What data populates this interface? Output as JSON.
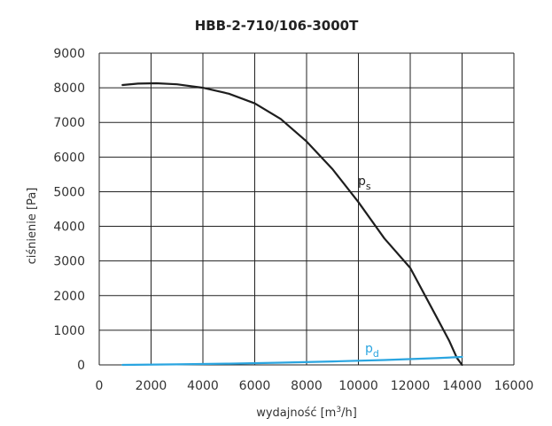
{
  "chart_data": {
    "type": "line",
    "title": "HBB-2-710/106-3000T",
    "xlabel": "wydajność [m³/h]",
    "ylabel": "ciśnienie [Pa]",
    "xlim": [
      0,
      16000
    ],
    "ylim": [
      0,
      9000
    ],
    "xticks": [
      0,
      2000,
      4000,
      6000,
      8000,
      10000,
      12000,
      14000,
      16000
    ],
    "yticks": [
      0,
      1000,
      2000,
      3000,
      4000,
      5000,
      6000,
      7000,
      8000,
      9000
    ],
    "grid": true,
    "series": [
      {
        "name": "ps",
        "label_main": "p",
        "label_sub": "s",
        "color": "#1e1e1e",
        "x": [
          900,
          1500,
          2200,
          3000,
          4000,
          5000,
          6000,
          7000,
          8000,
          9000,
          10000,
          11000,
          12000,
          13000,
          13500,
          13800,
          14000
        ],
        "y": [
          8080,
          8120,
          8130,
          8100,
          8000,
          7830,
          7550,
          7100,
          6450,
          5650,
          4700,
          3650,
          2800,
          1400,
          700,
          200,
          0
        ]
      },
      {
        "name": "pd",
        "label_main": "p",
        "label_sub": "d",
        "color": "#2aa5e0",
        "x": [
          900,
          3000,
          5000,
          7000,
          9000,
          11000,
          13000,
          14000
        ],
        "y": [
          0,
          15,
          35,
          65,
          100,
          140,
          195,
          230
        ]
      }
    ]
  }
}
